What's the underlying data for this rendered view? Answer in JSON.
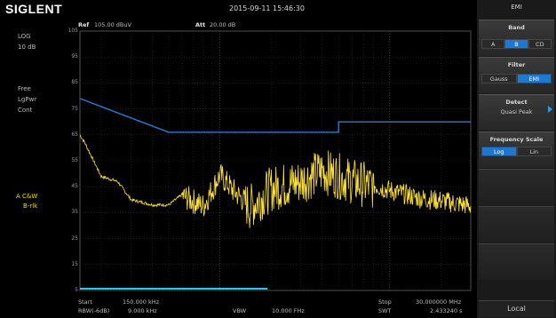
{
  "header": {
    "logo": "SIGLENT",
    "datetime": "2015-09-11  15:46:30"
  },
  "left_panel": {
    "scale_type": "LOG",
    "scale_div": "10 dB",
    "sweep_mode": "Free",
    "avg_type": "LgPwr",
    "trigger": "Cont",
    "trace_label": "A C&W",
    "trace_sub": "B-rlk"
  },
  "plot": {
    "ref_label": "Ref",
    "ref_value": "105.00 dBuV",
    "att_label": "Att",
    "att_value": "20.00 dB"
  },
  "footer": {
    "start_label": "Start",
    "start_value": "150.000  kHz",
    "rbw_label": "RBW(-6dB)",
    "rbw_value": "9.000  kHz",
    "vbw_label": "VBW",
    "vbw_value": "10.000  FHz",
    "stop_label": "Stop",
    "stop_value": "30.000000  MHz",
    "swt_label": "SWT",
    "swt_value": "2.433240 s"
  },
  "right_panel": {
    "title": "EMI",
    "band": {
      "label": "Band",
      "options": [
        "A",
        "B",
        "CD"
      ],
      "selected": "B"
    },
    "filter": {
      "label": "Filter",
      "options": [
        "Gauss",
        "EMI"
      ],
      "selected": "EMI"
    },
    "detect": {
      "label": "Detect",
      "value": "Quasi Peak"
    },
    "freq_scale": {
      "label": "Frequency Scale",
      "options": [
        "Log",
        "Lin"
      ],
      "selected": "Log"
    },
    "local_label": "Local"
  },
  "colors": {
    "trace": "#ffe23a",
    "limit": "#2e7bd6",
    "accent": "#1e78d2"
  },
  "chart_data": {
    "type": "line",
    "ylim": [
      5,
      105
    ],
    "y_ticks": [
      105,
      95,
      85,
      75,
      65,
      55,
      45,
      35,
      25,
      15,
      5
    ],
    "x_scale": "log",
    "xlim": [
      0.15,
      30
    ],
    "grid": true,
    "series": [
      {
        "role": "limit",
        "x": [
          0.15,
          0.5,
          0.5,
          5,
          5,
          30
        ],
        "values": [
          79,
          66,
          66,
          66,
          70,
          70
        ]
      },
      {
        "role": "trace",
        "x": [
          0.15,
          0.16,
          0.2,
          0.25,
          0.3,
          0.4,
          0.5,
          0.6,
          0.8,
          1,
          1.2,
          1.5,
          2,
          3,
          4,
          5,
          6,
          8,
          10,
          15,
          20,
          30
        ],
        "values": [
          65,
          62,
          49,
          47,
          40,
          38,
          38,
          42,
          38,
          50,
          44,
          38,
          45,
          48,
          52,
          50,
          48,
          46,
          44,
          41,
          40,
          38
        ]
      }
    ]
  }
}
